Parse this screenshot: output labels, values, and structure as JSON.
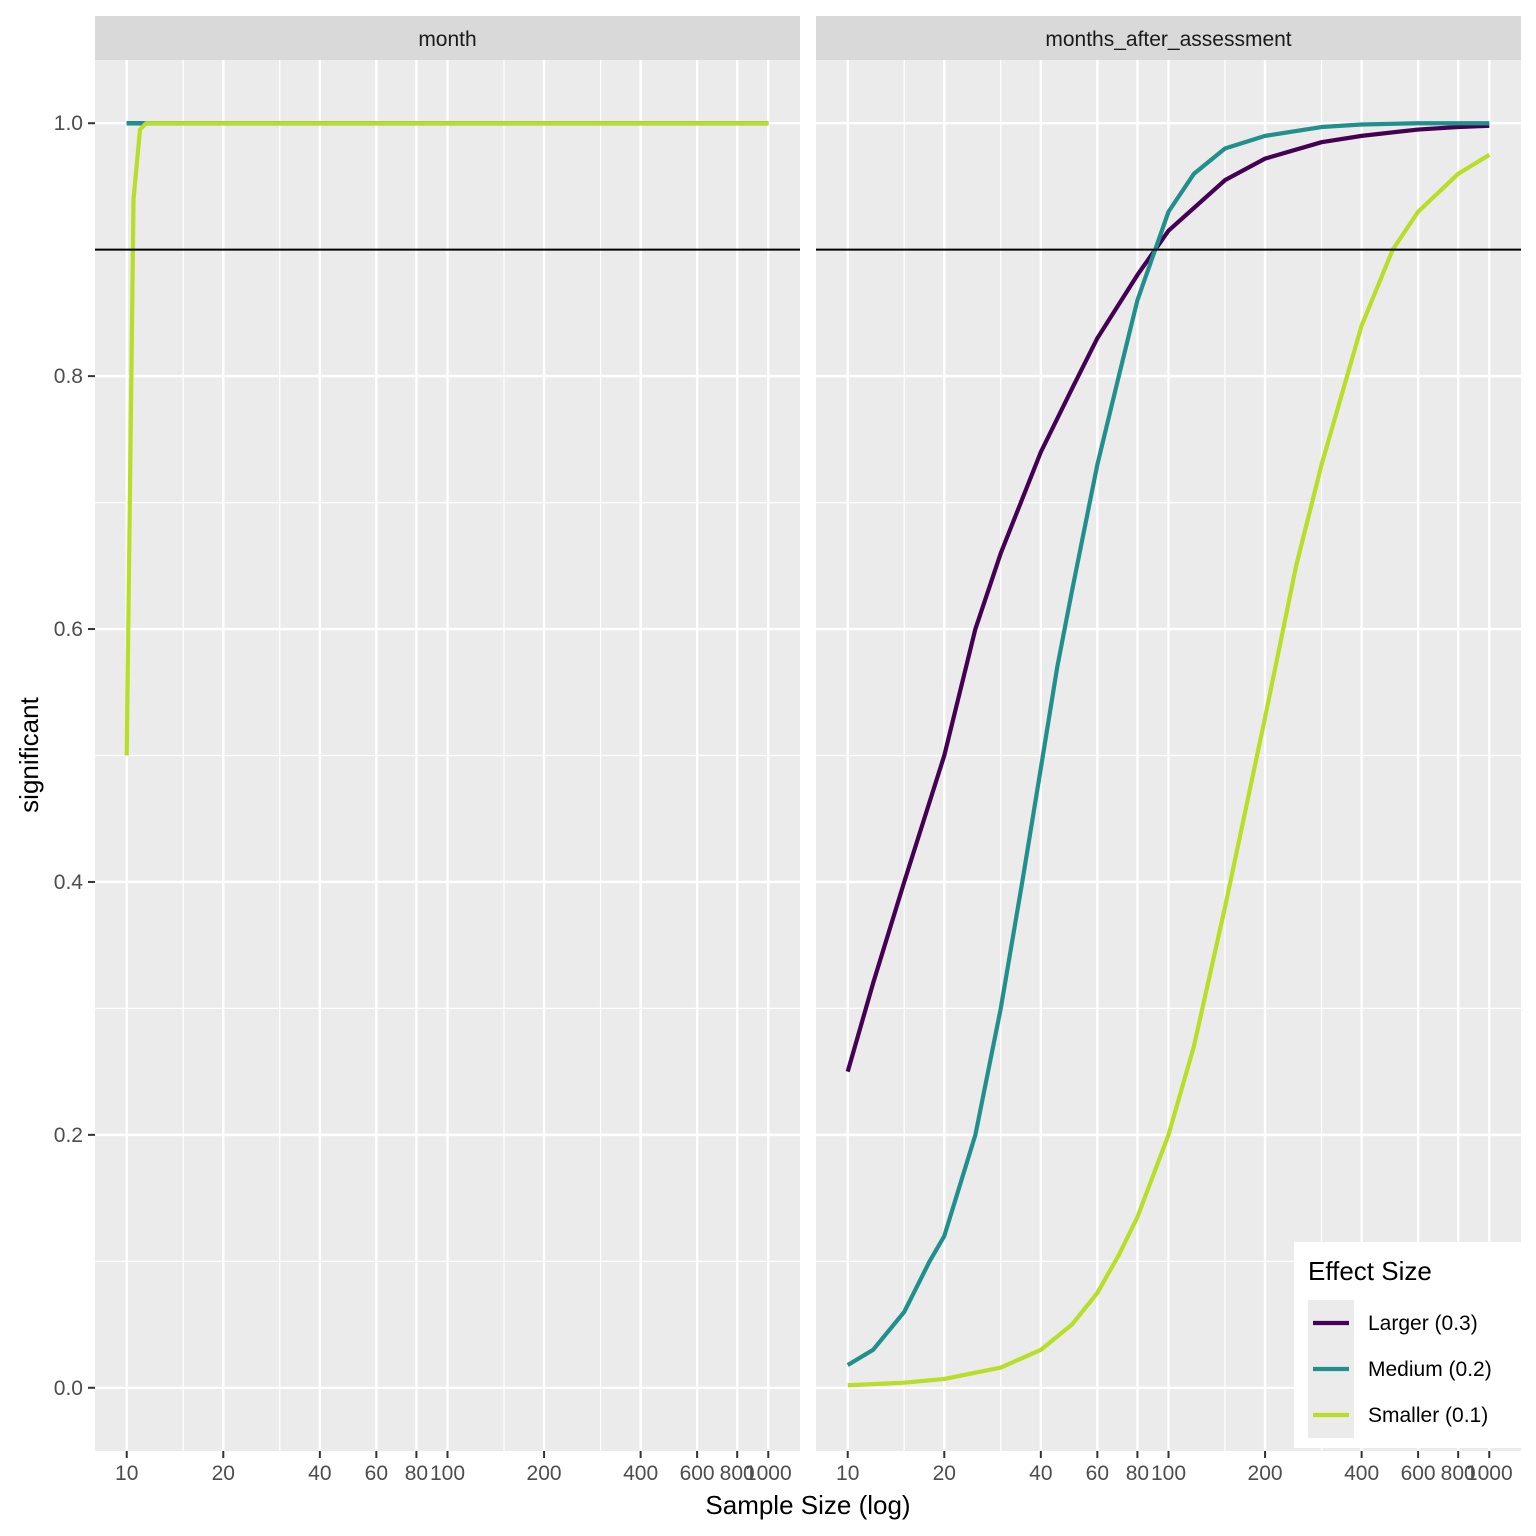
{
  "chart_data": {
    "type": "line",
    "xlabel": "Sample Size (log)",
    "ylabel": "significant",
    "x_scale": "log10",
    "xlim": [
      10,
      1000
    ],
    "ylim": [
      -0.05,
      1.05
    ],
    "x_ticks": [
      10,
      20,
      40,
      60,
      80,
      100,
      200,
      400,
      600,
      800,
      1000
    ],
    "x_tick_labels": [
      "10",
      "20",
      "40",
      "60",
      "80",
      "100",
      "200",
      "400",
      "600",
      "800",
      "1000"
    ],
    "y_ticks": [
      0.0,
      0.2,
      0.4,
      0.6,
      0.8,
      1.0
    ],
    "y_tick_labels": [
      "0.0",
      "0.2",
      "0.4",
      "0.6",
      "0.8",
      "1.0"
    ],
    "reference_line": {
      "y": 0.9,
      "color": "#000000"
    },
    "grid": true,
    "legend": {
      "title": "Effect Size",
      "position": "bottom-right",
      "entries": [
        "Larger (0.3)",
        "Medium (0.2)",
        "Smaller (0.1)"
      ]
    },
    "colors": {
      "Larger (0.3)": "#440154",
      "Medium (0.2)": "#21908C",
      "Smaller (0.1)": "#B8DE29",
      "panel_background": "#EBEBEB",
      "strip_background": "#D9D9D9",
      "grid": "#FFFFFF"
    },
    "panels": [
      {
        "strip": "month",
        "series": [
          {
            "name": "Larger (0.3)",
            "x": [
              10,
              11,
              12,
              13,
              15,
              20,
              50,
              100,
              200,
              500,
              1000
            ],
            "y": [
              1.0,
              1.0,
              1.0,
              1.0,
              1.0,
              1.0,
              1.0,
              1.0,
              1.0,
              1.0,
              1.0
            ]
          },
          {
            "name": "Medium (0.2)",
            "x": [
              10,
              11,
              12,
              13,
              15,
              20,
              50,
              100,
              200,
              500,
              1000
            ],
            "y": [
              1.0,
              1.0,
              1.0,
              1.0,
              1.0,
              1.0,
              1.0,
              1.0,
              1.0,
              1.0,
              1.0
            ]
          },
          {
            "name": "Smaller (0.1)",
            "x": [
              10,
              10.5,
              11,
              11.5,
              12,
              15,
              20,
              50,
              100,
              200,
              500,
              1000
            ],
            "y": [
              0.5,
              0.94,
              0.995,
              1.0,
              1.0,
              1.0,
              1.0,
              1.0,
              1.0,
              1.0,
              1.0,
              1.0
            ]
          }
        ]
      },
      {
        "strip": "months_after_assessment",
        "series": [
          {
            "name": "Larger (0.3)",
            "x": [
              10,
              12,
              15,
              20,
              25,
              30,
              40,
              50,
              60,
              80,
              100,
              150,
              200,
              300,
              400,
              600,
              800,
              1000
            ],
            "y": [
              0.25,
              0.32,
              0.4,
              0.5,
              0.6,
              0.66,
              0.74,
              0.79,
              0.83,
              0.88,
              0.915,
              0.955,
              0.972,
              0.985,
              0.99,
              0.995,
              0.997,
              0.998
            ]
          },
          {
            "name": "Medium (0.2)",
            "x": [
              10,
              12,
              15,
              18,
              20,
              25,
              30,
              35,
              40,
              45,
              50,
              60,
              70,
              80,
              100,
              120,
              150,
              200,
              300,
              400,
              600,
              1000
            ],
            "y": [
              0.018,
              0.03,
              0.06,
              0.1,
              0.12,
              0.2,
              0.3,
              0.4,
              0.49,
              0.57,
              0.63,
              0.73,
              0.8,
              0.86,
              0.93,
              0.96,
              0.98,
              0.99,
              0.997,
              0.999,
              1.0,
              1.0
            ]
          },
          {
            "name": "Smaller (0.1)",
            "x": [
              10,
              15,
              20,
              30,
              40,
              50,
              60,
              70,
              80,
              100,
              120,
              150,
              200,
              250,
              300,
              400,
              500,
              600,
              800,
              1000
            ],
            "y": [
              0.002,
              0.004,
              0.007,
              0.016,
              0.03,
              0.05,
              0.075,
              0.105,
              0.135,
              0.2,
              0.27,
              0.38,
              0.53,
              0.65,
              0.73,
              0.84,
              0.9,
              0.93,
              0.96,
              0.975
            ]
          }
        ]
      }
    ]
  }
}
